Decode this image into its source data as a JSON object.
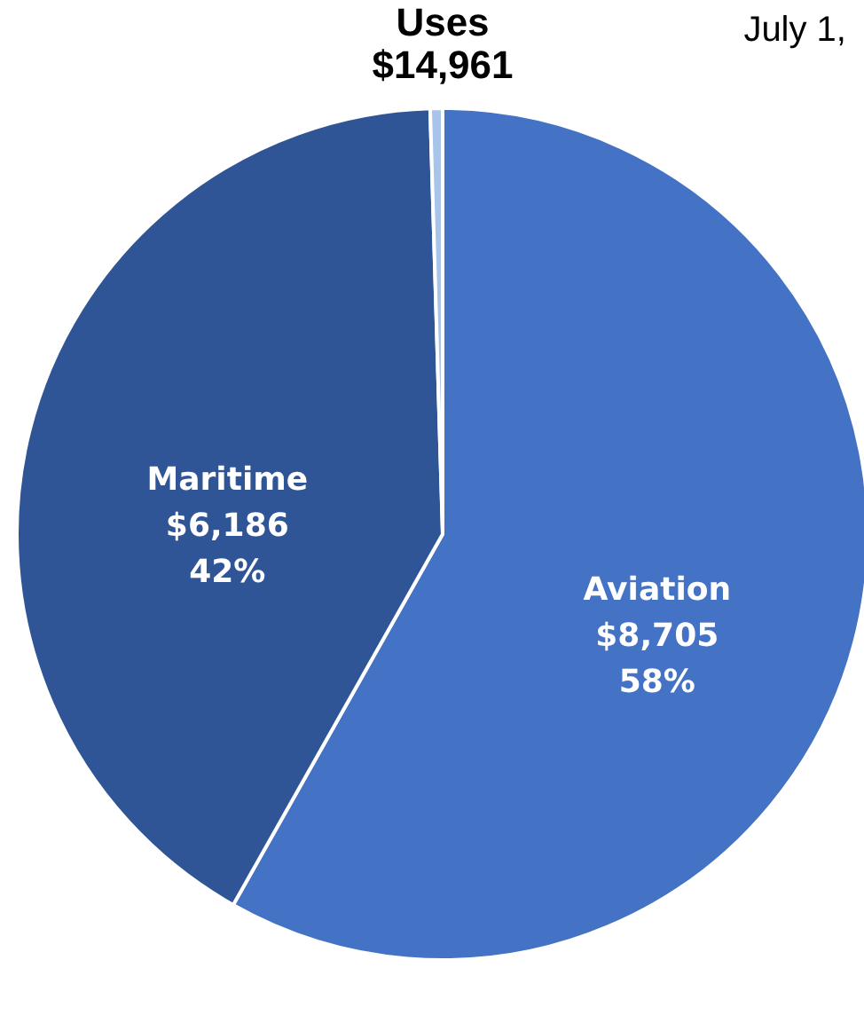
{
  "chart_data": {
    "type": "pie",
    "title": "Uses",
    "subtitle": "$14,961",
    "annotations": [
      "July 1,"
    ],
    "categories": [
      "Aviation",
      "Maritime",
      null
    ],
    "values": [
      8705,
      6186,
      70
    ],
    "colors": [
      "#4472c4",
      "#2f5597",
      "#a9c4eb"
    ],
    "value_labels": [
      "$8,705\n58%",
      "$6,186\n42%",
      null
    ]
  }
}
